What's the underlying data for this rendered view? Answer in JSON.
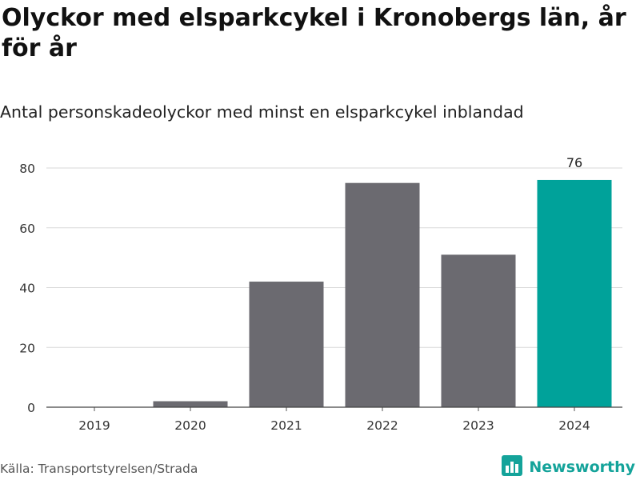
{
  "header": {
    "title": "Olyckor med elsparkcykel i Kronobergs län, år för år",
    "subtitle": "Antal personskadeolyckor med minst en elsparkcykel inblandad"
  },
  "footer": {
    "source": "Källa: Transportstyrelsen/Strada",
    "brand": "Newsworthy",
    "brand_icon": "bar-chart-logo-icon"
  },
  "colors": {
    "bar_default": "#6b6a70",
    "bar_highlight": "#00a29a",
    "grid": "#d9d9d9",
    "brand": "#14a39a"
  },
  "chart_data": {
    "type": "bar",
    "categories": [
      "2019",
      "2020",
      "2021",
      "2022",
      "2023",
      "2024"
    ],
    "values": [
      0,
      2,
      42,
      75,
      51,
      76
    ],
    "highlight_index": 5,
    "data_labels": [
      {
        "index": 5,
        "text": "76"
      }
    ],
    "yticks": [
      0,
      20,
      40,
      60,
      80
    ],
    "ylim": [
      0,
      82
    ],
    "grid": true,
    "legend": "none",
    "title": "",
    "xlabel": "",
    "ylabel": ""
  }
}
